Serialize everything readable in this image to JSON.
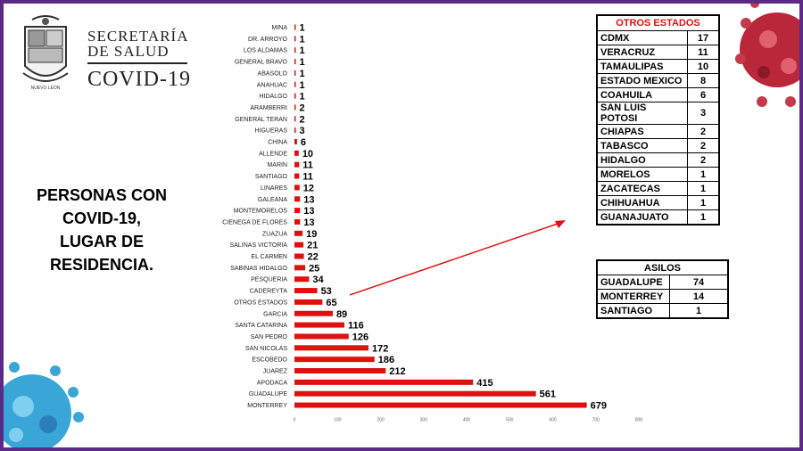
{
  "header": {
    "line1": "SECRETARÍA",
    "line2": "DE SALUD",
    "line3": "COVID-19",
    "seal_text": "NUEVO LEON"
  },
  "title_lines": [
    "PERSONAS CON",
    "COVID-19,",
    "LUGAR DE",
    "RESIDENCIA."
  ],
  "chart_data": {
    "type": "bar",
    "orientation": "horizontal",
    "categories": [
      "MINA",
      "DR. ARROYO",
      "LOS ALDAMAS",
      "GENERAL BRAVO",
      "ABASOLO",
      "ANAHUAC",
      "HIDALGO",
      "ARAMBERRI",
      "GENERAL TERAN",
      "HIGUERAS",
      "CHINA",
      "ALLENDE",
      "MARIN",
      "SANTIAGO",
      "LINARES",
      "GALEANA",
      "MONTEMORELOS",
      "CIENEGA DE FLORES",
      "ZUAZUA",
      "SALINAS VICTORIA",
      "EL CARMEN",
      "SABINAS HIDALGO",
      "PESQUERIA",
      "CADEREYTA",
      "OTROS ESTADOS",
      "GARCIA",
      "SANTA CATARINA",
      "SAN PEDRO",
      "SAN NICOLAS",
      "ESCOBEDO",
      "JUAREZ",
      "APODACA",
      "GUADALUPE",
      "MONTERREY"
    ],
    "values": [
      1,
      1,
      1,
      1,
      1,
      1,
      1,
      2,
      2,
      3,
      6,
      10,
      11,
      11,
      12,
      13,
      13,
      13,
      19,
      21,
      22,
      25,
      34,
      53,
      65,
      89,
      116,
      126,
      172,
      186,
      212,
      415,
      561,
      679
    ],
    "xlim": [
      0,
      800
    ],
    "xticks": [
      "0",
      "100",
      "200",
      "300",
      "400",
      "500",
      "600",
      "700",
      "800"
    ],
    "bar_color": "#e01010"
  },
  "otros_estados": {
    "title": "OTROS ESTADOS",
    "rows": [
      {
        "name": "CDMX",
        "count": "17"
      },
      {
        "name": "VERACRUZ",
        "count": "11"
      },
      {
        "name": "TAMAULIPAS",
        "count": "10"
      },
      {
        "name": "ESTADO MEXICO",
        "count": "8"
      },
      {
        "name": "COAHUILA",
        "count": "6"
      },
      {
        "name": "SAN LUIS POTOSI",
        "count": "3"
      },
      {
        "name": "CHIAPAS",
        "count": "2"
      },
      {
        "name": "TABASCO",
        "count": "2"
      },
      {
        "name": "HIDALGO",
        "count": "2"
      },
      {
        "name": "MORELOS",
        "count": "1"
      },
      {
        "name": "ZACATECAS",
        "count": "1"
      },
      {
        "name": "CHIHUAHUA",
        "count": "1"
      },
      {
        "name": "GUANAJUATO",
        "count": "1"
      }
    ]
  },
  "asilos": {
    "title": "ASILOS",
    "rows": [
      {
        "name": "GUADALUPE",
        "count": "74"
      },
      {
        "name": "MONTERREY",
        "count": "14"
      },
      {
        "name": "SANTIAGO",
        "count": "1"
      }
    ]
  },
  "colors": {
    "accent": "#e01010",
    "frame": "#5b2a86",
    "virus_red": "#c0283a",
    "virus_blue": "#3aa6d8"
  }
}
